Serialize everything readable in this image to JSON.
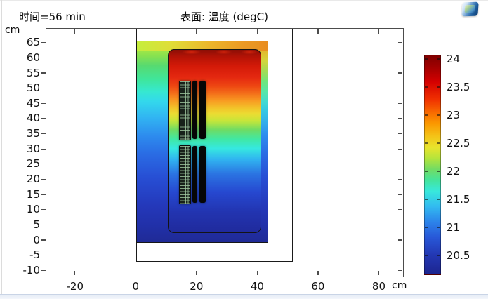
{
  "header": {
    "time_label": "时间=56 min",
    "plot_title": "表面: 温度 (degC)"
  },
  "toolbar": {
    "snapshot_icon": "screenshot-thumbnail-icon"
  },
  "axes": {
    "x": {
      "unit": "cm"
    },
    "y": {
      "unit": "cm"
    }
  },
  "chart_data": {
    "type": "heatmap",
    "title": "表面: 温度 (degC)",
    "annotation": "时间=56 min",
    "x_unit": "cm",
    "y_unit": "cm",
    "x_ticks": [
      -20,
      0,
      20,
      40,
      60,
      80
    ],
    "y_ticks": [
      65,
      60,
      55,
      50,
      45,
      40,
      35,
      30,
      25,
      20,
      15,
      10,
      5,
      0,
      -5,
      -10
    ],
    "xlim": [
      -29.6,
      87.9
    ],
    "ylim": [
      -12.2,
      69.8
    ],
    "grid": false,
    "colorbar": {
      "labels": [
        24,
        23.5,
        23,
        22.5,
        22,
        21.5,
        21,
        20.5
      ],
      "min": 20.2,
      "max": 24.1,
      "colormap": "rainbow-jet",
      "stops": [
        "#7f0000",
        "#d40000",
        "#f86a00",
        "#e8e42c",
        "#72dc64",
        "#38e8dc",
        "#32baf0",
        "#2858d8",
        "#1c248e"
      ]
    },
    "regions": [
      {
        "name": "outer-enclosure-outline",
        "x_cm": [
          0,
          51
        ],
        "y_cm": [
          -6.6,
          70
        ],
        "fill": "none"
      },
      {
        "name": "air-domain-surface",
        "x_cm": [
          0,
          42.8
        ],
        "y_cm": [
          0,
          65.9
        ],
        "temp_degC_top": 23.0,
        "temp_degC_bottom": 20.4
      },
      {
        "name": "battery-pack",
        "x_cm": [
          10.1,
          40.2
        ],
        "y_cm": [
          3.1,
          63.1
        ],
        "temp_degC_top": 24.0,
        "temp_degC_bottom": 20.5
      },
      {
        "name": "meshed-cell-stack-upper",
        "x_cm": [
          13.9,
          17.4
        ],
        "y_cm": [
          33.8,
          53.0
        ]
      },
      {
        "name": "meshed-cell-stack-lower",
        "x_cm": [
          13.9,
          17.4
        ],
        "y_cm": [
          12.8,
          31.7
        ]
      },
      {
        "name": "solid-cells-upper",
        "x_cm": [
          18.3,
          22.6
        ],
        "y_cm": [
          33.8,
          52.9
        ]
      },
      {
        "name": "solid-cells-lower",
        "x_cm": [
          18.3,
          22.6
        ],
        "y_cm": [
          12.7,
          31.4
        ]
      }
    ]
  }
}
